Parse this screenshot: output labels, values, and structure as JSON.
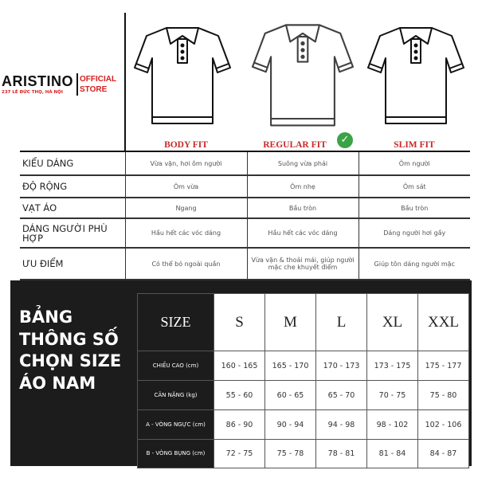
{
  "brand": {
    "name": "ARISTINO",
    "address": "237 LÊ ĐỨC THỌ, HÀ NỘI",
    "official_line1": "OFFICIAL",
    "official_line2": "STORE",
    "accent": "#d42020"
  },
  "fits": [
    {
      "name": "BODY FIT"
    },
    {
      "name": "REGULAR FIT",
      "recommended": true,
      "badge_icon": "check-icon",
      "badge_color": "#3aa346"
    },
    {
      "name": "SLIM FIT"
    }
  ],
  "comparison": [
    {
      "label": "KIỂU DÁNG",
      "values": [
        "Vừa vặn, hơi ôm người",
        "Suông vừa phải",
        "Ôm người"
      ]
    },
    {
      "label": "ĐỘ RỘNG",
      "values": [
        "Ôm vừa",
        "Ôm nhẹ",
        "Ôm sát"
      ]
    },
    {
      "label": "VẠT ÁO",
      "values": [
        "Ngang",
        "Bầu tròn",
        "Bầu tròn"
      ]
    },
    {
      "label": "DÁNG NGƯỜI PHÙ HỢP",
      "values": [
        "Hầu hết các vóc dáng",
        "Hầu hết các vóc dáng",
        "Dáng người hơi gầy"
      ]
    },
    {
      "label": "ƯU ĐIỂM",
      "values": [
        "Có thể bỏ ngoài quần",
        "Vừa vặn & thoải mái, giúp người mặc che khuyết điểm",
        "Giúp tôn dáng người mặc"
      ]
    }
  ],
  "size_chart": {
    "title_lines": [
      "BẢNG",
      "THÔNG SỐ",
      "CHỌN SIZE",
      "ÁO NAM"
    ],
    "header": "SIZE",
    "sizes": [
      "S",
      "M",
      "L",
      "XL",
      "XXL"
    ],
    "rows": [
      {
        "label": "CHIỀU CAO (cm)",
        "values": [
          "160 - 165",
          "165 - 170",
          "170 - 173",
          "173 - 175",
          "175 - 177"
        ]
      },
      {
        "label": "CÂN NẶNG (kg)",
        "values": [
          "55 - 60",
          "60 - 65",
          "65 - 70",
          "70 - 75",
          "75 - 80"
        ]
      },
      {
        "label": "A - VÒNG NGỰC (cm)",
        "values": [
          "86 - 90",
          "90 - 94",
          "94 - 98",
          "98 - 102",
          "102 - 106"
        ]
      },
      {
        "label": "B - VÒNG BỤNG (cm)",
        "values": [
          "72 - 75",
          "75 - 78",
          "78 - 81",
          "81 - 84",
          "84 - 87"
        ]
      }
    ]
  }
}
